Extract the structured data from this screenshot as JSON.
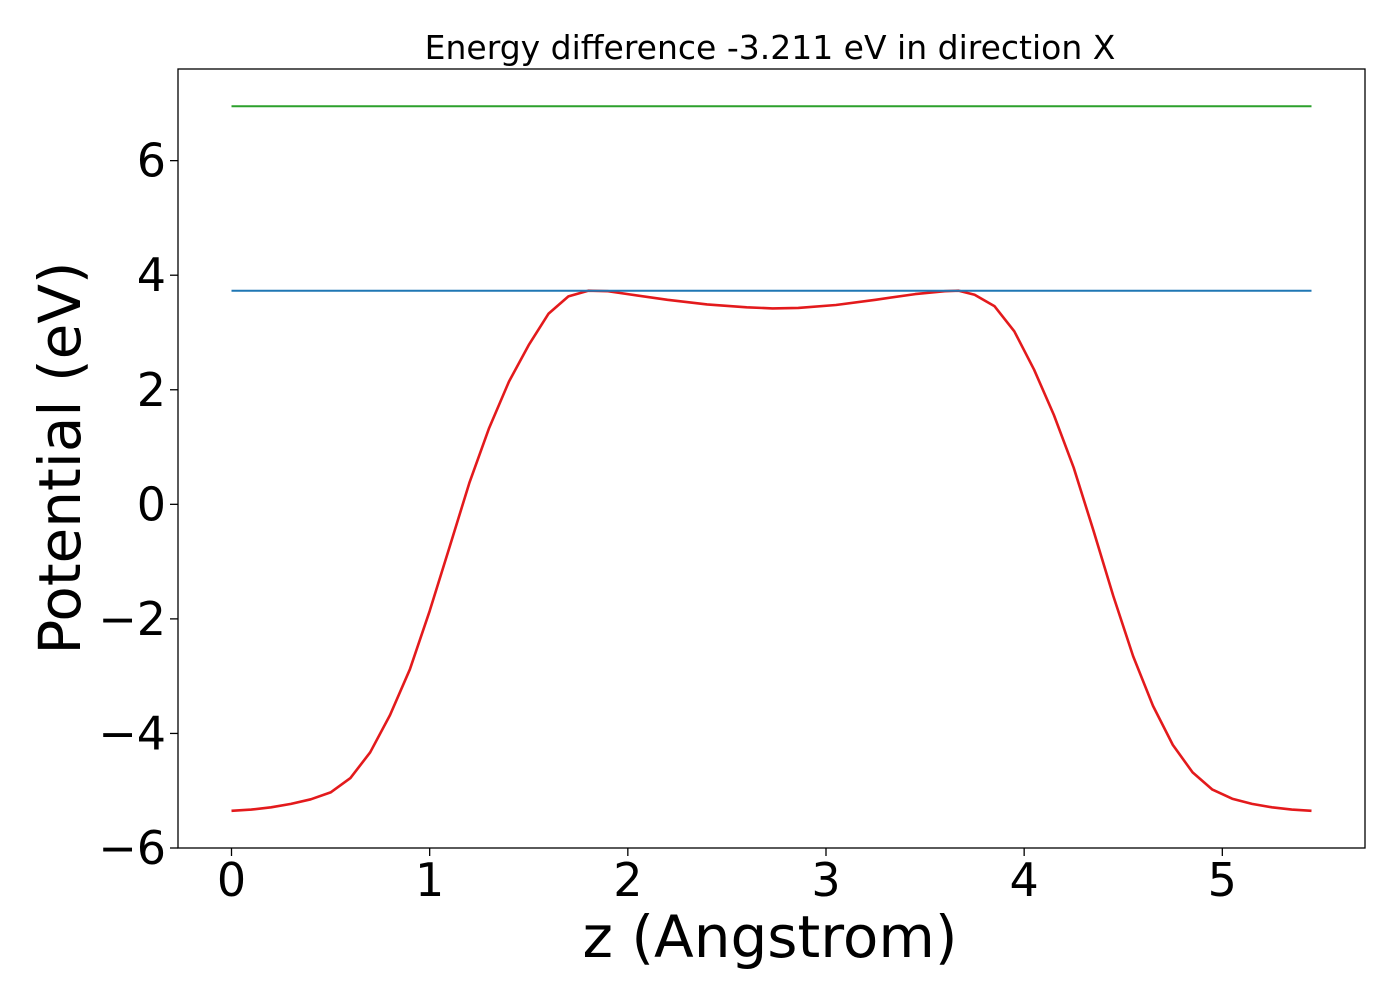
{
  "chart_data": {
    "type": "line",
    "title": "Energy difference -3.211 eV in direction X",
    "xlabel": "z (Angstrom)",
    "ylabel": "Potential (eV)",
    "xlim": [
      -0.27,
      5.72
    ],
    "ylim": [
      -6.0,
      7.6
    ],
    "x_ticks": [
      0,
      1,
      2,
      3,
      4,
      5
    ],
    "x_tick_labels": [
      "0",
      "1",
      "2",
      "3",
      "4",
      "5"
    ],
    "y_ticks": [
      -6,
      -4,
      -2,
      0,
      2,
      4,
      6
    ],
    "y_tick_labels": [
      "−6",
      "−4",
      "−2",
      "0",
      "2",
      "4",
      "6"
    ],
    "grid": false,
    "colors": {
      "potential": "#e31a1c",
      "level_low": "#1f77b4",
      "level_high": "#2ca02c"
    },
    "series": [
      {
        "key": "potential",
        "x": [
          0.0,
          0.1,
          0.2,
          0.3,
          0.4,
          0.5,
          0.6,
          0.7,
          0.8,
          0.9,
          1.0,
          1.1,
          1.2,
          1.3,
          1.4,
          1.5,
          1.6,
          1.7,
          1.8,
          1.9,
          2.0,
          2.2,
          2.4,
          2.6,
          2.73,
          2.86,
          3.05,
          3.25,
          3.45,
          3.6,
          3.67,
          3.75,
          3.85,
          3.95,
          4.05,
          4.15,
          4.25,
          4.35,
          4.45,
          4.55,
          4.65,
          4.75,
          4.85,
          4.95,
          5.05,
          5.15,
          5.25,
          5.35,
          5.45
        ],
        "y": [
          -5.35,
          -5.33,
          -5.29,
          -5.23,
          -5.15,
          -5.03,
          -4.78,
          -4.33,
          -3.68,
          -2.88,
          -1.86,
          -0.75,
          0.37,
          1.33,
          2.14,
          2.78,
          3.33,
          3.63,
          3.73,
          3.72,
          3.67,
          3.57,
          3.49,
          3.44,
          3.42,
          3.43,
          3.48,
          3.57,
          3.67,
          3.72,
          3.73,
          3.66,
          3.46,
          3.02,
          2.35,
          1.56,
          0.64,
          -0.46,
          -1.6,
          -2.65,
          -3.52,
          -4.2,
          -4.68,
          -4.98,
          -5.14,
          -5.23,
          -5.29,
          -5.33,
          -5.35
        ]
      },
      {
        "key": "level_low",
        "x": [
          0.0,
          5.45
        ],
        "y": [
          3.73,
          3.73
        ]
      },
      {
        "key": "level_high",
        "x": [
          0.0,
          5.45
        ],
        "y": [
          6.95,
          6.95
        ]
      }
    ]
  }
}
